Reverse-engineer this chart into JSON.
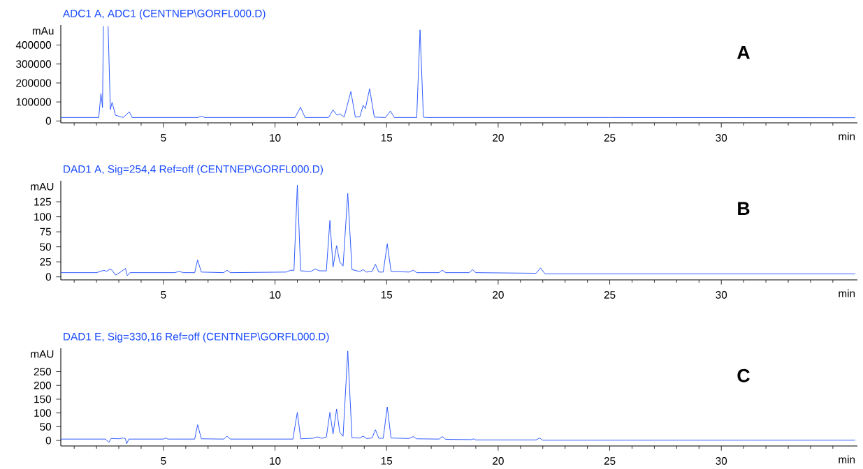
{
  "chart_data": [
    {
      "type": "line",
      "title": "ADC1 A, ADC1 (CENTNEP\\GORFL000.D)",
      "xlabel": "min",
      "ylabel": "mAu",
      "annotations": [
        "A"
      ],
      "xlim": [
        0.4,
        36.1
      ],
      "ylim": [
        -10000,
        505000
      ],
      "xticks": [
        {
          "value": 1,
          "label": null
        },
        {
          "value": 2,
          "label": null
        },
        {
          "value": 3,
          "label": null
        },
        {
          "value": 4,
          "label": null
        },
        5,
        {
          "value": 6,
          "label": null
        },
        {
          "value": 7,
          "label": null
        },
        {
          "value": 8,
          "label": null
        },
        {
          "value": 9,
          "label": null
        },
        10,
        {
          "value": 11,
          "label": null
        },
        {
          "value": 12,
          "label": null
        },
        {
          "value": 13,
          "label": null
        },
        {
          "value": 14,
          "label": null
        },
        15,
        {
          "value": 16,
          "label": null
        },
        {
          "value": 17,
          "label": null
        },
        {
          "value": 18,
          "label": null
        },
        {
          "value": 19,
          "label": null
        },
        20,
        {
          "value": 21,
          "label": null
        },
        {
          "value": 22,
          "label": null
        },
        {
          "value": 23,
          "label": null
        },
        {
          "value": 24,
          "label": null
        },
        25,
        {
          "value": 26,
          "label": null
        },
        {
          "value": 27,
          "label": null
        },
        {
          "value": 28,
          "label": null
        },
        {
          "value": 29,
          "label": null
        },
        30,
        {
          "value": 31,
          "label": null
        },
        {
          "value": 32,
          "label": null
        },
        {
          "value": 33,
          "label": null
        },
        {
          "value": 34,
          "label": null
        },
        {
          "value": 35,
          "label": null
        }
      ],
      "yticks": [
        0,
        100000,
        200000,
        300000,
        400000
      ],
      "series": [
        {
          "color": "#2050ff",
          "x": [
            0.4,
            2.1,
            2.2,
            2.27,
            2.31,
            2.42,
            2.52,
            2.62,
            2.7,
            2.85,
            3.2,
            3.47,
            3.6,
            6.55,
            6.7,
            6.85,
            10.9,
            11.14,
            11.35,
            12.4,
            12.6,
            12.78,
            12.9,
            13.1,
            13.4,
            13.6,
            13.8,
            13.95,
            14.05,
            14.24,
            14.45,
            14.95,
            15.17,
            15.35,
            16.35,
            16.5,
            16.65,
            16.8,
            25,
            36.0
          ],
          "values": [
            18000,
            18000,
            145000,
            70000,
            500000,
            null,
            500000,
            60000,
            98000,
            30000,
            18000,
            48000,
            18000,
            18000,
            25000,
            18000,
            18000,
            72000,
            18000,
            18000,
            58000,
            30000,
            38000,
            20000,
            155000,
            20000,
            22000,
            82000,
            65000,
            170000,
            20000,
            18000,
            52000,
            18000,
            18000,
            480000,
            20000,
            18000,
            18000,
            17000
          ]
        }
      ]
    },
    {
      "type": "line",
      "title": "DAD1 A, Sig=254,4 Ref=off (CENTNEP\\GORFL000.D)",
      "xlabel": "min",
      "ylabel": "mAU",
      "annotations": [
        "B"
      ],
      "xlim": [
        0.4,
        36.1
      ],
      "ylim": [
        -5,
        160
      ],
      "xticks": [
        {
          "value": 1,
          "label": null
        },
        {
          "value": 2,
          "label": null
        },
        {
          "value": 3,
          "label": null
        },
        {
          "value": 4,
          "label": null
        },
        5,
        {
          "value": 6,
          "label": null
        },
        {
          "value": 7,
          "label": null
        },
        {
          "value": 8,
          "label": null
        },
        {
          "value": 9,
          "label": null
        },
        10,
        {
          "value": 11,
          "label": null
        },
        {
          "value": 12,
          "label": null
        },
        {
          "value": 13,
          "label": null
        },
        {
          "value": 14,
          "label": null
        },
        15,
        {
          "value": 16,
          "label": null
        },
        {
          "value": 17,
          "label": null
        },
        {
          "value": 18,
          "label": null
        },
        {
          "value": 19,
          "label": null
        },
        20,
        {
          "value": 21,
          "label": null
        },
        {
          "value": 22,
          "label": null
        },
        {
          "value": 23,
          "label": null
        },
        {
          "value": 24,
          "label": null
        },
        25,
        {
          "value": 26,
          "label": null
        },
        {
          "value": 27,
          "label": null
        },
        {
          "value": 28,
          "label": null
        },
        {
          "value": 29,
          "label": null
        },
        30,
        {
          "value": 31,
          "label": null
        },
        {
          "value": 32,
          "label": null
        },
        {
          "value": 33,
          "label": null
        },
        {
          "value": 34,
          "label": null
        },
        {
          "value": 35,
          "label": null
        }
      ],
      "yticks": [
        0,
        25,
        50,
        75,
        100,
        125
      ],
      "series": [
        {
          "color": "#2050ff",
          "x": [
            0.4,
            2.0,
            2.34,
            2.45,
            2.6,
            2.7,
            2.85,
            3.0,
            3.3,
            3.38,
            3.5,
            5.5,
            5.7,
            5.9,
            6.4,
            6.53,
            6.7,
            7.7,
            7.85,
            8.0,
            10.5,
            10.7,
            10.85,
            11.0,
            11.15,
            11.6,
            11.8,
            12.0,
            12.3,
            12.46,
            12.6,
            12.76,
            12.9,
            13.05,
            13.26,
            13.45,
            13.8,
            13.95,
            14.1,
            14.35,
            14.5,
            14.65,
            14.85,
            15.03,
            15.2,
            16.0,
            16.2,
            16.35,
            17.35,
            17.5,
            17.65,
            18.7,
            18.86,
            19.0,
            21.7,
            21.9,
            22.1,
            36.0
          ],
          "values": [
            7,
            7,
            11,
            9,
            13,
            11,
            3,
            6,
            14,
            2,
            7,
            7,
            9,
            7,
            7,
            28,
            8,
            7,
            11,
            7,
            8,
            11,
            11,
            153,
            10,
            9,
            13,
            10,
            10,
            94,
            16,
            52,
            25,
            18,
            139,
            12,
            9,
            12,
            8,
            9,
            21,
            8,
            8,
            55,
            9,
            8,
            11,
            7,
            7,
            11,
            7,
            7,
            12,
            7,
            6,
            15,
            5,
            5
          ]
        }
      ]
    },
    {
      "type": "line",
      "title": "DAD1 E, Sig=330,16 Ref=off (CENTNEP\\GORFL000.D)",
      "xlabel": "min",
      "ylabel": "mAU",
      "annotations": [
        "C"
      ],
      "xlim": [
        0.4,
        36.1
      ],
      "ylim": [
        -20,
        335
      ],
      "xticks": [
        {
          "value": 1,
          "label": null
        },
        {
          "value": 2,
          "label": null
        },
        {
          "value": 3,
          "label": null
        },
        {
          "value": 4,
          "label": null
        },
        5,
        {
          "value": 6,
          "label": null
        },
        {
          "value": 7,
          "label": null
        },
        {
          "value": 8,
          "label": null
        },
        {
          "value": 9,
          "label": null
        },
        10,
        {
          "value": 11,
          "label": null
        },
        {
          "value": 12,
          "label": null
        },
        {
          "value": 13,
          "label": null
        },
        {
          "value": 14,
          "label": null
        },
        15,
        {
          "value": 16,
          "label": null
        },
        {
          "value": 17,
          "label": null
        },
        {
          "value": 18,
          "label": null
        },
        {
          "value": 19,
          "label": null
        },
        20,
        {
          "value": 21,
          "label": null
        },
        {
          "value": 22,
          "label": null
        },
        {
          "value": 23,
          "label": null
        },
        {
          "value": 24,
          "label": null
        },
        25,
        {
          "value": 26,
          "label": null
        },
        {
          "value": 27,
          "label": null
        },
        {
          "value": 28,
          "label": null
        },
        {
          "value": 29,
          "label": null
        },
        30,
        {
          "value": 31,
          "label": null
        },
        {
          "value": 32,
          "label": null
        },
        {
          "value": 33,
          "label": null
        },
        {
          "value": 34,
          "label": null
        },
        {
          "value": 35,
          "label": null
        }
      ],
      "yticks": [
        0,
        50,
        100,
        150,
        200,
        250
      ],
      "series": [
        {
          "color": "#2050ff",
          "x": [
            0.4,
            2.4,
            2.56,
            2.65,
            3.0,
            3.2,
            3.3,
            3.35,
            3.45,
            5.0,
            5.1,
            5.2,
            6.4,
            6.53,
            6.7,
            7.7,
            7.85,
            8.0,
            10.8,
            11.0,
            11.15,
            11.7,
            11.9,
            12.1,
            12.3,
            12.46,
            12.6,
            12.76,
            12.9,
            13.05,
            13.26,
            13.45,
            13.8,
            13.95,
            14.1,
            14.35,
            14.5,
            14.65,
            14.85,
            15.03,
            15.2,
            16.0,
            16.2,
            16.35,
            17.35,
            17.5,
            17.65,
            18.8,
            18.9,
            19.0,
            21.7,
            21.85,
            22.0,
            36.0
          ],
          "values": [
            5,
            5,
            -7,
            7,
            6,
            9,
            6,
            -12,
            5,
            5,
            9,
            5,
            5,
            57,
            6,
            5,
            15,
            5,
            5,
            102,
            6,
            8,
            13,
            8,
            12,
            102,
            23,
            114,
            30,
            15,
            325,
            10,
            9,
            16,
            7,
            9,
            39,
            8,
            8,
            122,
            9,
            7,
            14,
            6,
            5,
            14,
            4,
            3,
            6,
            2,
            2,
            9,
            1,
            1
          ]
        }
      ]
    }
  ]
}
